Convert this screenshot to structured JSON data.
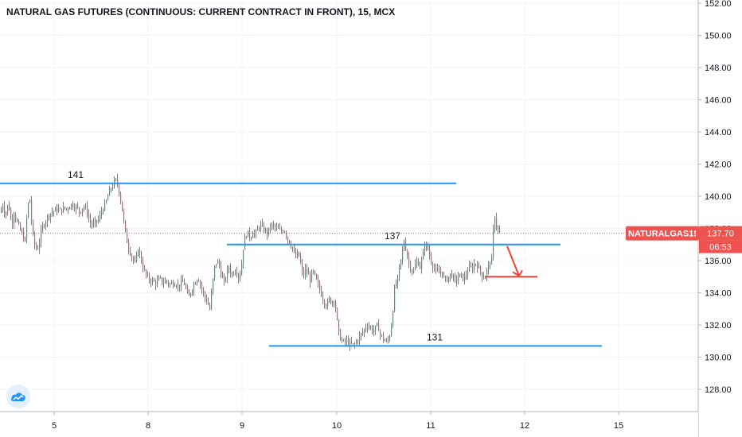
{
  "header": {
    "title": "NATURAL GAS FUTURES (CONTINUOUS: CURRENT CONTRACT IN FRONT), 15, MCX"
  },
  "price_tag": {
    "symbol": "NATURALGAS1!",
    "price": "137.70",
    "countdown": "06:53"
  },
  "colors": {
    "up": "#26a69a",
    "down": "#ef5350",
    "level_line": "#2196f3",
    "price_line": "#ef5350",
    "arrow": "#f44336",
    "grid": "#f0f3fa",
    "axis_text": "#131722"
  },
  "logo_icon": "tradingview-cloud-icon",
  "chart_data": {
    "type": "candlestick",
    "title": "NATURAL GAS FUTURES (CONTINUOUS: CURRENT CONTRACT IN FRONT), 15, MCX",
    "y_ticks": [
      "152.00",
      "150.00",
      "148.00",
      "146.00",
      "144.00",
      "142.00",
      "140.00",
      "138.00",
      "136.00",
      "134.00",
      "132.00",
      "130.00",
      "128.00"
    ],
    "x_ticks": [
      "5",
      "8",
      "9",
      "10",
      "11",
      "12",
      "15"
    ],
    "ylim": [
      126.5,
      152.2
    ],
    "grid": true,
    "last_price": 137.7,
    "levels": [
      {
        "label": "141",
        "value": 140.8
      },
      {
        "label": "137",
        "value": 137.0
      },
      {
        "label": "131",
        "value": 130.7
      }
    ],
    "close_path": [
      [
        0,
        139.0
      ],
      [
        3,
        139.5
      ],
      [
        6,
        138.8
      ],
      [
        10,
        139.6
      ],
      [
        14,
        138.2
      ],
      [
        17,
        139.0
      ],
      [
        20,
        138.5
      ],
      [
        24,
        138.0
      ],
      [
        28,
        137.5
      ],
      [
        31,
        137.2
      ],
      [
        34,
        139.4
      ],
      [
        37,
        139.8
      ],
      [
        40,
        137.8
      ],
      [
        43,
        137.0
      ],
      [
        46,
        136.6
      ],
      [
        49,
        137.2
      ],
      [
        52,
        138.0
      ],
      [
        56,
        138.4
      ],
      [
        60,
        138.8
      ],
      [
        64,
        139.0
      ],
      [
        68,
        139.1
      ],
      [
        72,
        139.2
      ],
      [
        76,
        139.1
      ],
      [
        80,
        139.3
      ],
      [
        84,
        139.2
      ],
      [
        88,
        139.5
      ],
      [
        92,
        139.4
      ],
      [
        96,
        139.3
      ],
      [
        100,
        139.0
      ],
      [
        104,
        139.4
      ],
      [
        108,
        139.2
      ],
      [
        112,
        138.4
      ],
      [
        116,
        138.2
      ],
      [
        120,
        138.4
      ],
      [
        124,
        138.6
      ],
      [
        128,
        139.2
      ],
      [
        132,
        139.5
      ],
      [
        136,
        140.2
      ],
      [
        140,
        140.6
      ],
      [
        143,
        140.9
      ],
      [
        146,
        141.0
      ],
      [
        149,
        140.3
      ],
      [
        152,
        139.5
      ],
      [
        155,
        138.4
      ],
      [
        158,
        137.4
      ],
      [
        161,
        136.8
      ],
      [
        164,
        136.4
      ],
      [
        167,
        136.0
      ],
      [
        170,
        135.8
      ],
      [
        173,
        136.8
      ],
      [
        176,
        136.2
      ],
      [
        179,
        135.6
      ],
      [
        182,
        135.2
      ],
      [
        185,
        134.9
      ],
      [
        188,
        134.8
      ],
      [
        192,
        134.7
      ],
      [
        196,
        134.6
      ],
      [
        200,
        134.9
      ],
      [
        204,
        134.6
      ],
      [
        208,
        134.8
      ],
      [
        212,
        134.5
      ],
      [
        216,
        134.6
      ],
      [
        220,
        134.6
      ],
      [
        224,
        134.4
      ],
      [
        228,
        134.7
      ],
      [
        232,
        134.5
      ],
      [
        236,
        133.6
      ],
      [
        240,
        134.2
      ],
      [
        244,
        134.6
      ],
      [
        248,
        135.0
      ],
      [
        252,
        134.4
      ],
      [
        256,
        133.8
      ],
      [
        260,
        133.4
      ],
      [
        263,
        133.0
      ],
      [
        266,
        134.4
      ],
      [
        269,
        135.6
      ],
      [
        272,
        136.0
      ],
      [
        275,
        135.7
      ],
      [
        278,
        135.0
      ],
      [
        281,
        134.6
      ],
      [
        284,
        135.2
      ],
      [
        287,
        135.6
      ],
      [
        290,
        135.1
      ],
      [
        293,
        135.3
      ],
      [
        296,
        135.5
      ],
      [
        299,
        135.0
      ],
      [
        302,
        135.3
      ],
      [
        305,
        136.8
      ],
      [
        308,
        137.6
      ],
      [
        311,
        137.7
      ],
      [
        314,
        137.4
      ],
      [
        317,
        137.8
      ],
      [
        320,
        137.6
      ],
      [
        323,
        137.9
      ],
      [
        326,
        138.3
      ],
      [
        329,
        138.0
      ],
      [
        332,
        137.9
      ],
      [
        335,
        137.7
      ],
      [
        338,
        138.0
      ],
      [
        341,
        138.2
      ],
      [
        344,
        138.1
      ],
      [
        347,
        138.0
      ],
      [
        350,
        137.9
      ],
      [
        353,
        137.8
      ],
      [
        356,
        138.0
      ],
      [
        359,
        137.6
      ],
      [
        362,
        137.2
      ],
      [
        365,
        137.0
      ],
      [
        368,
        136.6
      ],
      [
        371,
        136.2
      ],
      [
        374,
        136.5
      ],
      [
        377,
        135.8
      ],
      [
        380,
        135.0
      ],
      [
        383,
        135.4
      ],
      [
        386,
        135.2
      ],
      [
        389,
        134.8
      ],
      [
        392,
        135.4
      ],
      [
        395,
        135.0
      ],
      [
        398,
        134.6
      ],
      [
        401,
        134.2
      ],
      [
        404,
        133.8
      ],
      [
        407,
        133.4
      ],
      [
        410,
        133.2
      ],
      [
        413,
        133.6
      ],
      [
        416,
        133.4
      ],
      [
        419,
        133.6
      ],
      [
        422,
        132.8
      ],
      [
        424,
        131.6
      ],
      [
        426,
        131.3
      ],
      [
        429,
        131.0
      ],
      [
        432,
        130.9
      ],
      [
        435,
        131.0
      ],
      [
        438,
        130.8
      ],
      [
        441,
        130.8
      ],
      [
        444,
        130.7
      ],
      [
        447,
        131.0
      ],
      [
        450,
        131.2
      ],
      [
        453,
        131.4
      ],
      [
        456,
        131.6
      ],
      [
        459,
        131.9
      ],
      [
        462,
        132.0
      ],
      [
        465,
        131.8
      ],
      [
        468,
        131.6
      ],
      [
        471,
        131.8
      ],
      [
        474,
        132.0
      ],
      [
        477,
        131.4
      ],
      [
        480,
        131.2
      ],
      [
        483,
        131.0
      ],
      [
        486,
        130.9
      ],
      [
        489,
        131.4
      ],
      [
        491,
        132.0
      ],
      [
        493,
        133.0
      ],
      [
        495,
        134.2
      ],
      [
        497,
        134.6
      ],
      [
        499,
        134.8
      ],
      [
        501,
        135.6
      ],
      [
        503,
        136.0
      ],
      [
        505,
        136.6
      ],
      [
        507,
        137.2
      ],
      [
        509,
        136.8
      ],
      [
        512,
        136.0
      ],
      [
        515,
        135.6
      ],
      [
        518,
        135.2
      ],
      [
        521,
        135.7
      ],
      [
        524,
        136.0
      ],
      [
        527,
        135.6
      ],
      [
        530,
        136.2
      ],
      [
        533,
        137.0
      ],
      [
        536,
        136.9
      ],
      [
        539,
        136.3
      ],
      [
        542,
        135.8
      ],
      [
        545,
        135.5
      ],
      [
        548,
        135.3
      ],
      [
        551,
        135.2
      ],
      [
        554,
        135.4
      ],
      [
        557,
        134.9
      ],
      [
        560,
        134.8
      ],
      [
        563,
        135.0
      ],
      [
        566,
        135.2
      ],
      [
        569,
        134.9
      ],
      [
        572,
        134.7
      ],
      [
        575,
        135.0
      ],
      [
        578,
        135.1
      ],
      [
        581,
        134.9
      ],
      [
        584,
        135.0
      ],
      [
        587,
        135.4
      ],
      [
        590,
        135.6
      ],
      [
        593,
        135.5
      ],
      [
        596,
        135.9
      ],
      [
        599,
        135.7
      ],
      [
        602,
        135.4
      ],
      [
        605,
        135.1
      ],
      [
        608,
        134.9
      ],
      [
        611,
        135.4
      ],
      [
        614,
        135.8
      ],
      [
        617,
        136.1
      ],
      [
        619,
        137.8
      ],
      [
        621,
        138.8
      ],
      [
        623,
        138.2
      ],
      [
        625,
        137.9
      ],
      [
        627,
        137.7
      ]
    ]
  }
}
